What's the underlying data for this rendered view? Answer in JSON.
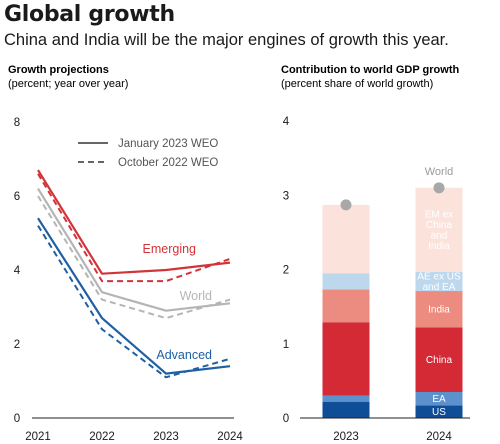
{
  "header": {
    "title": "Global growth",
    "subtitle": "China and India will be the major engines of growth this year."
  },
  "colors": {
    "emerging": "#d2343a",
    "world": "#b5b5b5",
    "advanced": "#1f5fa3",
    "us": "#0f4e97",
    "ea": "#5b91cc",
    "china": "#d42a35",
    "india": "#ec8c80",
    "ae_ex_us_ea": "#bdd7ec",
    "em_ex": "#fbe3dc",
    "world_marker": "#a8a8a8"
  },
  "chart_data": [
    {
      "type": "line",
      "title": "Growth projections",
      "subtitle": "(percent; year over year)",
      "x": [
        "2021",
        "2022",
        "2023",
        "2024"
      ],
      "ylim": [
        0,
        8
      ],
      "yticks": [
        "0",
        "2",
        "4",
        "6",
        "8"
      ],
      "legend": [
        {
          "label": "January 2023 WEO",
          "style": "solid"
        },
        {
          "label": "October 2022 WEO",
          "style": "dashed"
        }
      ],
      "series": [
        {
          "name": "Emerging",
          "color_key": "emerging",
          "january_2023": [
            6.7,
            3.9,
            4.0,
            4.2
          ],
          "october_2022": [
            6.6,
            3.7,
            3.7,
            4.3
          ]
        },
        {
          "name": "World",
          "color_key": "world",
          "january_2023": [
            6.2,
            3.4,
            2.9,
            3.1
          ],
          "october_2022": [
            6.0,
            3.2,
            2.7,
            3.2
          ]
        },
        {
          "name": "Advanced",
          "color_key": "advanced",
          "january_2023": [
            5.4,
            2.7,
            1.2,
            1.4
          ],
          "october_2022": [
            5.2,
            2.4,
            1.1,
            1.6
          ]
        }
      ]
    },
    {
      "type": "bar",
      "stacked": true,
      "title": "Contribution to world GDP growth",
      "subtitle": "(percent share of world growth)",
      "categories": [
        "2023",
        "2024"
      ],
      "ylim": [
        0,
        4
      ],
      "yticks": [
        "0",
        "1",
        "2",
        "3",
        "4"
      ],
      "series": [
        {
          "name": "US",
          "color_key": "us",
          "values": [
            0.22,
            0.17
          ]
        },
        {
          "name": "EA",
          "color_key": "ea",
          "values": [
            0.08,
            0.18
          ]
        },
        {
          "name": "China",
          "color_key": "china",
          "values": [
            0.99,
            0.87
          ]
        },
        {
          "name": "India",
          "color_key": "india",
          "values": [
            0.44,
            0.49
          ]
        },
        {
          "name": "AE ex US and EA",
          "color_key": "ae_ex_us_ea",
          "values": [
            0.22,
            0.26
          ]
        },
        {
          "name": "EM ex China and India",
          "color_key": "em_ex",
          "values": [
            0.92,
            1.13
          ]
        }
      ],
      "world_label": "World",
      "world_values": [
        2.87,
        3.1
      ]
    }
  ]
}
